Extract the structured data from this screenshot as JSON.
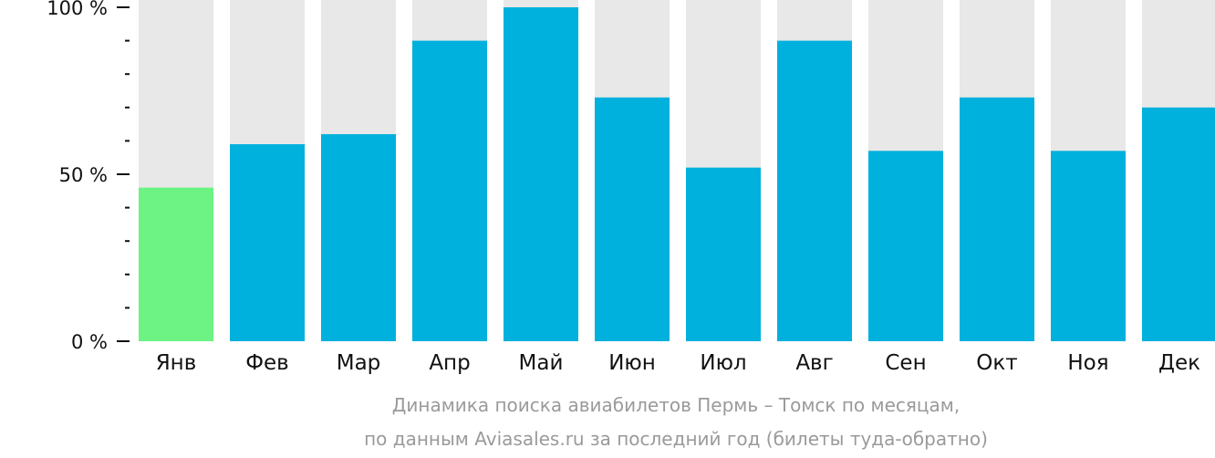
{
  "chart_data": {
    "type": "bar",
    "categories": [
      "Янв",
      "Фев",
      "Мар",
      "Апр",
      "Май",
      "Июн",
      "Июл",
      "Авг",
      "Сен",
      "Окт",
      "Ноя",
      "Дек"
    ],
    "values": [
      46,
      59,
      62,
      90,
      100,
      73,
      52,
      90,
      57,
      73,
      57,
      70
    ],
    "ylim": [
      0,
      100
    ],
    "yticks": [
      {
        "value": 0,
        "label": "0 %"
      },
      {
        "value": 50,
        "label": "50 %"
      },
      {
        "value": 100,
        "label": "100 %"
      }
    ],
    "minor_ticks": [
      10,
      20,
      30,
      40,
      60,
      70,
      80,
      90
    ],
    "highlight_index": 0,
    "colors": {
      "bar": "#00b0dd",
      "highlight": "#6cf383",
      "track": "#e8e8e8",
      "axis": "#111111",
      "caption": "#9a9a9a"
    },
    "caption_lines": [
      "Динамика поиска авиабилетов Пермь – Томск по месяцам,",
      "по данным Aviasales.ru за последний год (билеты туда-обратно)"
    ]
  }
}
